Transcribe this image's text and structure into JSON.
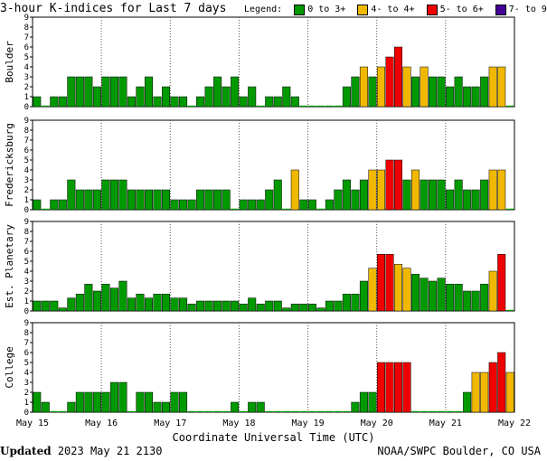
{
  "title": "3-hour K-indices for Last 7 days",
  "legend": {
    "label": "Legend:",
    "items": [
      {
        "label": "0 to 3+",
        "color": "#009900"
      },
      {
        "label": "4- to 4+",
        "color": "#f0b800"
      },
      {
        "label": "5- to 6+",
        "color": "#ee0000"
      },
      {
        "label": "7- to 9",
        "color": "#440099"
      }
    ]
  },
  "footer": {
    "updated_label": "Updated",
    "updated_value": "2023 May 21 2130",
    "source": "NOAA/SWPC Boulder, CO USA"
  },
  "chart_data": {
    "type": "bar",
    "xlabel": "Coordinate Universal Time (UTC)",
    "x_ticks": [
      "May 15",
      "May 16",
      "May 17",
      "May 18",
      "May 19",
      "May 20",
      "May 21",
      "May 22"
    ],
    "y_ticks": [
      "0",
      "1",
      "2",
      "3",
      "4",
      "5",
      "6",
      "7",
      "8",
      "9"
    ],
    "ylim": [
      0,
      9
    ],
    "bars_per_day": 8,
    "color_thresholds": {
      "green_below": 4,
      "yellow_below": 5,
      "red_below": 7
    },
    "panels": [
      {
        "name": "Boulder",
        "values": [
          1,
          0,
          1,
          1,
          3,
          3,
          3,
          2,
          3,
          3,
          3,
          1,
          2,
          3,
          1,
          2,
          1,
          1,
          0,
          1,
          2,
          3,
          2,
          3,
          1,
          2,
          0,
          1,
          1,
          2,
          1,
          0,
          0,
          0,
          0,
          0,
          2,
          3,
          4,
          3,
          4,
          5,
          6,
          4,
          3,
          4,
          3,
          3,
          2,
          3,
          2,
          2,
          3,
          4,
          4,
          0
        ]
      },
      {
        "name": "Fredericksburg",
        "values": [
          1,
          0,
          1,
          1,
          3,
          2,
          2,
          2,
          3,
          3,
          3,
          2,
          2,
          2,
          2,
          2,
          1,
          1,
          1,
          2,
          2,
          2,
          2,
          0,
          1,
          1,
          1,
          2,
          3,
          0,
          4,
          1,
          1,
          0,
          1,
          2,
          3,
          2,
          3,
          4,
          4,
          5,
          5,
          3,
          4,
          3,
          3,
          3,
          2,
          3,
          2,
          2,
          3,
          4,
          4,
          0
        ]
      },
      {
        "name": "Est. Planetary",
        "values": [
          1,
          1,
          1,
          0.3,
          1.3,
          1.7,
          2.7,
          2,
          2.7,
          2.3,
          3,
          1.3,
          1.7,
          1.3,
          1.7,
          1.7,
          1.3,
          1.3,
          0.7,
          1,
          1,
          1,
          1,
          1,
          0.7,
          1.3,
          0.7,
          1,
          1,
          0.3,
          0.7,
          0.7,
          0.7,
          0.3,
          1,
          1,
          1.7,
          1.7,
          3,
          4.3,
          5.7,
          5.7,
          4.7,
          4.3,
          3.7,
          3.3,
          3,
          3.3,
          2.7,
          2.7,
          2,
          2,
          2.7,
          4,
          5.7,
          0
        ]
      },
      {
        "name": "College",
        "values": [
          2,
          1,
          0,
          0,
          1,
          2,
          2,
          2,
          2,
          3,
          3,
          0,
          2,
          2,
          1,
          1,
          2,
          2,
          0,
          0,
          0,
          0,
          0,
          1,
          0,
          1,
          1,
          0,
          0,
          0,
          0,
          0,
          0,
          0,
          0,
          0,
          0,
          1,
          2,
          2,
          5,
          5,
          5,
          5,
          0,
          0,
          0,
          0,
          0,
          0,
          2,
          4,
          4,
          5,
          6,
          4
        ]
      }
    ]
  }
}
